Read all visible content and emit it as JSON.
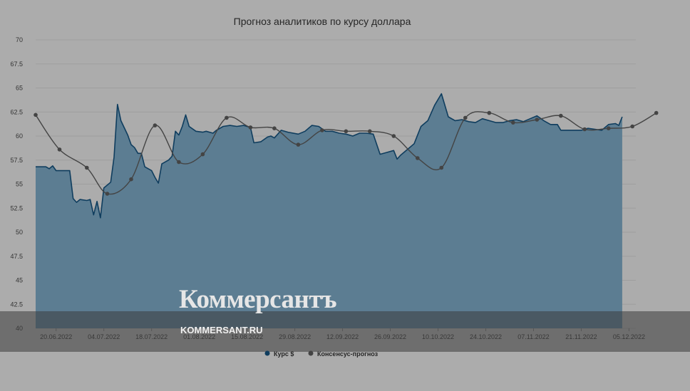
{
  "colors": {
    "background": "#acacac",
    "grid": "#9e9e9e",
    "area_fill": "#5c7d92",
    "series_line": "#0f3d5e",
    "consensus_line": "#444444",
    "banner": "#3c3c3c"
  },
  "brand": {
    "logo": "Коммерсантъ",
    "url": "KOMMERSANT.RU"
  },
  "chart_data": {
    "type": "area",
    "title": "Прогноз аналитиков по курсу доллара",
    "xlabel": "",
    "ylabel": "",
    "ylim": [
      40,
      70
    ],
    "y_ticks": [
      "70",
      "67.5",
      "65",
      "62.5",
      "60",
      "57.5",
      "55",
      "52.5",
      "50",
      "47.5",
      "45",
      "42.5",
      "40"
    ],
    "x_tick_labels": [
      "20.06.2022",
      "04.07.2022",
      "18.07.2022",
      "01.08.2022",
      "15.08.2022",
      "29.08.2022",
      "12.09.2022",
      "26.09.2022",
      "10.10.2022",
      "24.10.2022",
      "07.11.2022",
      "21.11.2022",
      "05.12.2022"
    ],
    "x_range": [
      "2022-06-14",
      "2022-12-07"
    ],
    "grid": true,
    "legend_position": "bottom",
    "legend": [
      "Курс $",
      "Консенсус-прогноз"
    ],
    "series": [
      {
        "name": "Курс $",
        "style": "area",
        "points": [
          [
            "2022-06-14",
            56.8
          ],
          [
            "2022-06-16",
            56.8
          ],
          [
            "2022-06-17",
            56.8
          ],
          [
            "2022-06-18",
            56.6
          ],
          [
            "2022-06-19",
            56.9
          ],
          [
            "2022-06-20",
            56.4
          ],
          [
            "2022-06-22",
            56.4
          ],
          [
            "2022-06-24",
            56.4
          ],
          [
            "2022-06-25",
            53.5
          ],
          [
            "2022-06-26",
            53.1
          ],
          [
            "2022-06-27",
            53.4
          ],
          [
            "2022-06-29",
            53.3
          ],
          [
            "2022-06-30",
            53.4
          ],
          [
            "2022-07-01",
            51.8
          ],
          [
            "2022-07-02",
            53.2
          ],
          [
            "2022-07-03",
            51.5
          ],
          [
            "2022-07-04",
            54.6
          ],
          [
            "2022-07-06",
            55.2
          ],
          [
            "2022-07-07",
            57.8
          ],
          [
            "2022-07-08",
            63.3
          ],
          [
            "2022-07-09",
            61.6
          ],
          [
            "2022-07-11",
            60.1
          ],
          [
            "2022-07-12",
            59.1
          ],
          [
            "2022-07-13",
            58.8
          ],
          [
            "2022-07-14",
            58.2
          ],
          [
            "2022-07-15",
            58.2
          ],
          [
            "2022-07-16",
            56.8
          ],
          [
            "2022-07-18",
            56.4
          ],
          [
            "2022-07-19",
            55.7
          ],
          [
            "2022-07-20",
            55.1
          ],
          [
            "2022-07-21",
            57.1
          ],
          [
            "2022-07-23",
            57.5
          ],
          [
            "2022-07-24",
            57.9
          ],
          [
            "2022-07-25",
            60.5
          ],
          [
            "2022-07-26",
            60.1
          ],
          [
            "2022-07-27",
            61.0
          ],
          [
            "2022-07-28",
            62.2
          ],
          [
            "2022-07-29",
            61.0
          ],
          [
            "2022-07-31",
            60.5
          ],
          [
            "2022-08-02",
            60.4
          ],
          [
            "2022-08-03",
            60.5
          ],
          [
            "2022-08-05",
            60.3
          ],
          [
            "2022-08-06",
            60.6
          ],
          [
            "2022-08-08",
            61.0
          ],
          [
            "2022-08-10",
            61.1
          ],
          [
            "2022-08-12",
            61.0
          ],
          [
            "2022-08-14",
            61.1
          ],
          [
            "2022-08-16",
            60.9
          ],
          [
            "2022-08-17",
            59.3
          ],
          [
            "2022-08-19",
            59.4
          ],
          [
            "2022-08-21",
            59.9
          ],
          [
            "2022-08-22",
            60.0
          ],
          [
            "2022-08-23",
            59.8
          ],
          [
            "2022-08-25",
            60.6
          ],
          [
            "2022-08-27",
            60.4
          ],
          [
            "2022-08-30",
            60.2
          ],
          [
            "2022-09-01",
            60.5
          ],
          [
            "2022-09-03",
            61.1
          ],
          [
            "2022-09-05",
            61.0
          ],
          [
            "2022-09-07",
            60.5
          ],
          [
            "2022-09-09",
            60.5
          ],
          [
            "2022-09-11",
            60.3
          ],
          [
            "2022-09-13",
            60.2
          ],
          [
            "2022-09-15",
            60.0
          ],
          [
            "2022-09-17",
            60.3
          ],
          [
            "2022-09-19",
            60.3
          ],
          [
            "2022-09-21",
            60.2
          ],
          [
            "2022-09-23",
            58.1
          ],
          [
            "2022-09-25",
            58.3
          ],
          [
            "2022-09-27",
            58.5
          ],
          [
            "2022-09-28",
            57.6
          ],
          [
            "2022-09-29",
            58.0
          ],
          [
            "2022-10-01",
            58.6
          ],
          [
            "2022-10-03",
            59.2
          ],
          [
            "2022-10-05",
            61.0
          ],
          [
            "2022-10-07",
            61.6
          ],
          [
            "2022-10-09",
            63.2
          ],
          [
            "2022-10-11",
            64.4
          ],
          [
            "2022-10-13",
            62.0
          ],
          [
            "2022-10-15",
            61.6
          ],
          [
            "2022-10-17",
            61.7
          ],
          [
            "2022-10-19",
            61.5
          ],
          [
            "2022-10-21",
            61.4
          ],
          [
            "2022-10-23",
            61.8
          ],
          [
            "2022-10-25",
            61.6
          ],
          [
            "2022-10-27",
            61.4
          ],
          [
            "2022-10-29",
            61.4
          ],
          [
            "2022-10-31",
            61.6
          ],
          [
            "2022-11-02",
            61.7
          ],
          [
            "2022-11-04",
            61.5
          ],
          [
            "2022-11-06",
            61.8
          ],
          [
            "2022-11-08",
            62.1
          ],
          [
            "2022-11-10",
            61.6
          ],
          [
            "2022-11-12",
            61.2
          ],
          [
            "2022-11-14",
            61.2
          ],
          [
            "2022-11-15",
            60.6
          ],
          [
            "2022-11-17",
            60.6
          ],
          [
            "2022-11-19",
            60.6
          ],
          [
            "2022-11-21",
            60.6
          ],
          [
            "2022-11-23",
            60.8
          ],
          [
            "2022-11-25",
            60.7
          ],
          [
            "2022-11-27",
            60.6
          ],
          [
            "2022-11-29",
            61.2
          ],
          [
            "2022-12-01",
            61.3
          ],
          [
            "2022-12-02",
            61.1
          ],
          [
            "2022-12-03",
            62.0
          ]
        ]
      },
      {
        "name": "Консенсус-прогноз",
        "style": "line-markers",
        "points": [
          [
            "2022-06-14",
            62.2
          ],
          [
            "2022-06-21",
            58.6
          ],
          [
            "2022-06-29",
            56.7
          ],
          [
            "2022-07-05",
            54.0
          ],
          [
            "2022-07-12",
            55.5
          ],
          [
            "2022-07-19",
            61.1
          ],
          [
            "2022-07-26",
            57.3
          ],
          [
            "2022-08-02",
            58.1
          ],
          [
            "2022-08-09",
            61.9
          ],
          [
            "2022-08-16",
            60.9
          ],
          [
            "2022-08-23",
            60.8
          ],
          [
            "2022-08-30",
            59.1
          ],
          [
            "2022-09-06",
            60.6
          ],
          [
            "2022-09-13",
            60.5
          ],
          [
            "2022-09-20",
            60.5
          ],
          [
            "2022-09-27",
            60.0
          ],
          [
            "2022-10-04",
            57.7
          ],
          [
            "2022-10-11",
            56.7
          ],
          [
            "2022-10-18",
            61.9
          ],
          [
            "2022-10-25",
            62.4
          ],
          [
            "2022-11-01",
            61.4
          ],
          [
            "2022-11-08",
            61.7
          ],
          [
            "2022-11-15",
            62.1
          ],
          [
            "2022-11-22",
            60.7
          ],
          [
            "2022-11-29",
            60.8
          ],
          [
            "2022-12-06",
            61.0
          ],
          [
            "2022-12-13",
            62.4
          ]
        ]
      }
    ]
  }
}
